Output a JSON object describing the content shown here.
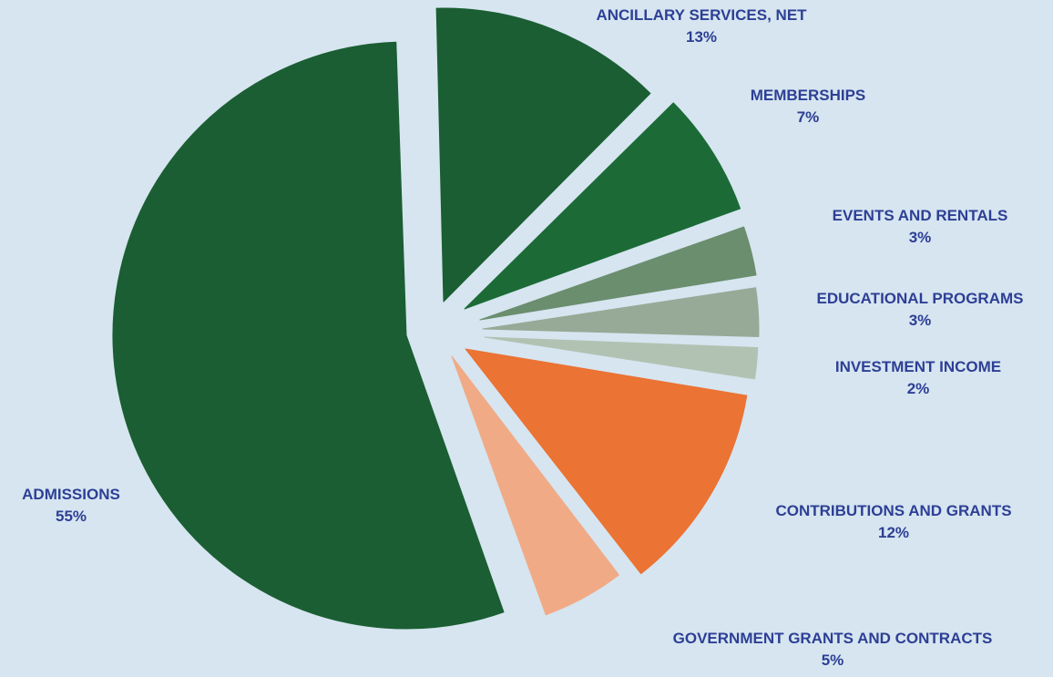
{
  "chart_data": {
    "type": "pie",
    "slices": [
      {
        "label": "ADMISSIONS",
        "percent_label": "55%",
        "value": 55,
        "color": "#1b5e33"
      },
      {
        "label": "ANCILLARY SERVICES, NET",
        "percent_label": "13%",
        "value": 13,
        "color": "#1b5e33"
      },
      {
        "label": "MEMBERSHIPS",
        "percent_label": "7%",
        "value": 7,
        "color": "#1c6b37"
      },
      {
        "label": "EVENTS AND RENTALS",
        "percent_label": "3%",
        "value": 3,
        "color": "#6b8e6e"
      },
      {
        "label": "EDUCATIONAL PROGRAMS",
        "percent_label": "3%",
        "value": 3,
        "color": "#97aa97"
      },
      {
        "label": "INVESTMENT INCOME",
        "percent_label": "2%",
        "value": 2,
        "color": "#b2c2b2"
      },
      {
        "label": "CONTRIBUTIONS AND GRANTS",
        "percent_label": "12%",
        "value": 12,
        "color": "#eb7334"
      },
      {
        "label": "GOVERNMENT GRANTS AND CONTRACTS",
        "percent_label": "5%",
        "value": 5,
        "color": "#f0ab86"
      }
    ],
    "legend": "none",
    "label_color": "#2d3f95",
    "background": "#d6e5f0"
  }
}
